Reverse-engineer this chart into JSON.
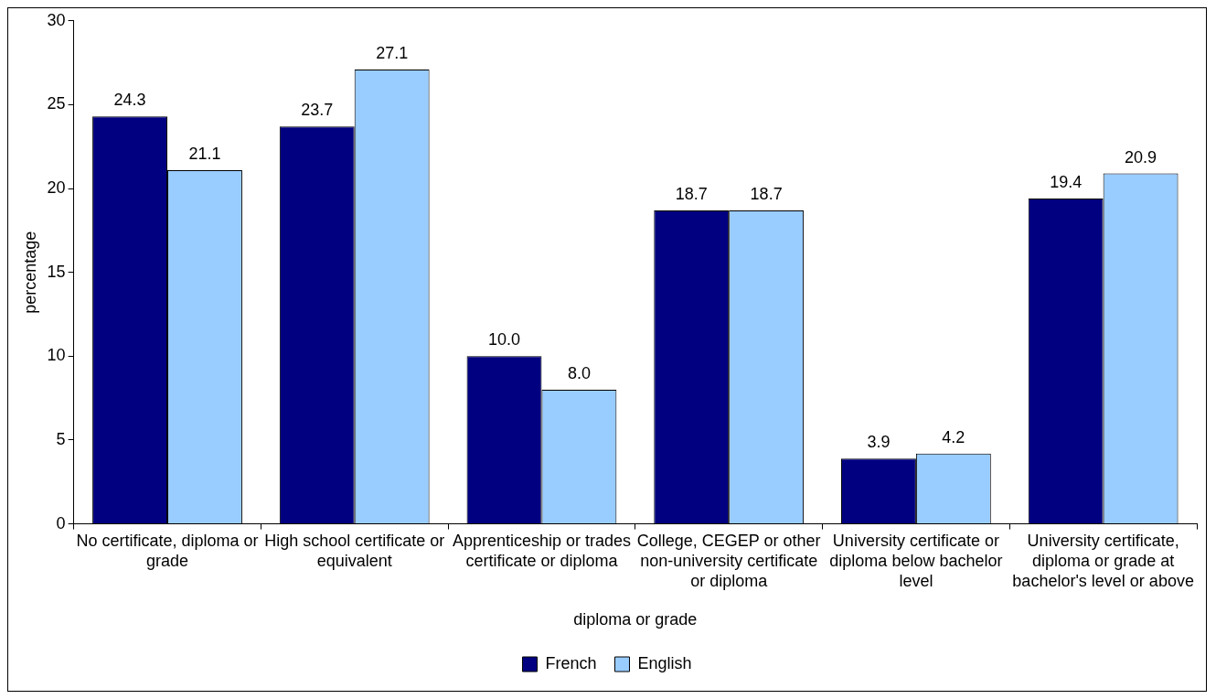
{
  "chart_data": {
    "type": "bar",
    "xlabel": "diploma or grade",
    "ylabel": "percentage",
    "categories": [
      "No certificate, diploma or grade",
      "High school certificate or equivalent",
      "Apprenticeship or trades certificate or diploma",
      "College, CEGEP or other non-university certificate or diploma",
      "University certificate or diploma below bachelor level",
      "University certificate, diploma or grade at bachelor's level or above"
    ],
    "series": [
      {
        "name": "French",
        "color": "#000080",
        "values": [
          24.3,
          23.7,
          10.0,
          18.7,
          3.9,
          19.4
        ],
        "value_labels": [
          "24.3",
          "23.7",
          "10.0",
          "18.7",
          "3.9",
          "19.4"
        ]
      },
      {
        "name": "English",
        "color": "#99ccff",
        "values": [
          21.1,
          27.1,
          8.0,
          18.7,
          4.2,
          20.9
        ],
        "value_labels": [
          "21.1",
          "27.1",
          "8.0",
          "18.7",
          "4.2",
          "20.9"
        ]
      }
    ],
    "ylim": [
      0,
      30
    ],
    "yticks": [
      0,
      5,
      10,
      15,
      20,
      25,
      30
    ],
    "grid": false,
    "legend": "bottom"
  }
}
